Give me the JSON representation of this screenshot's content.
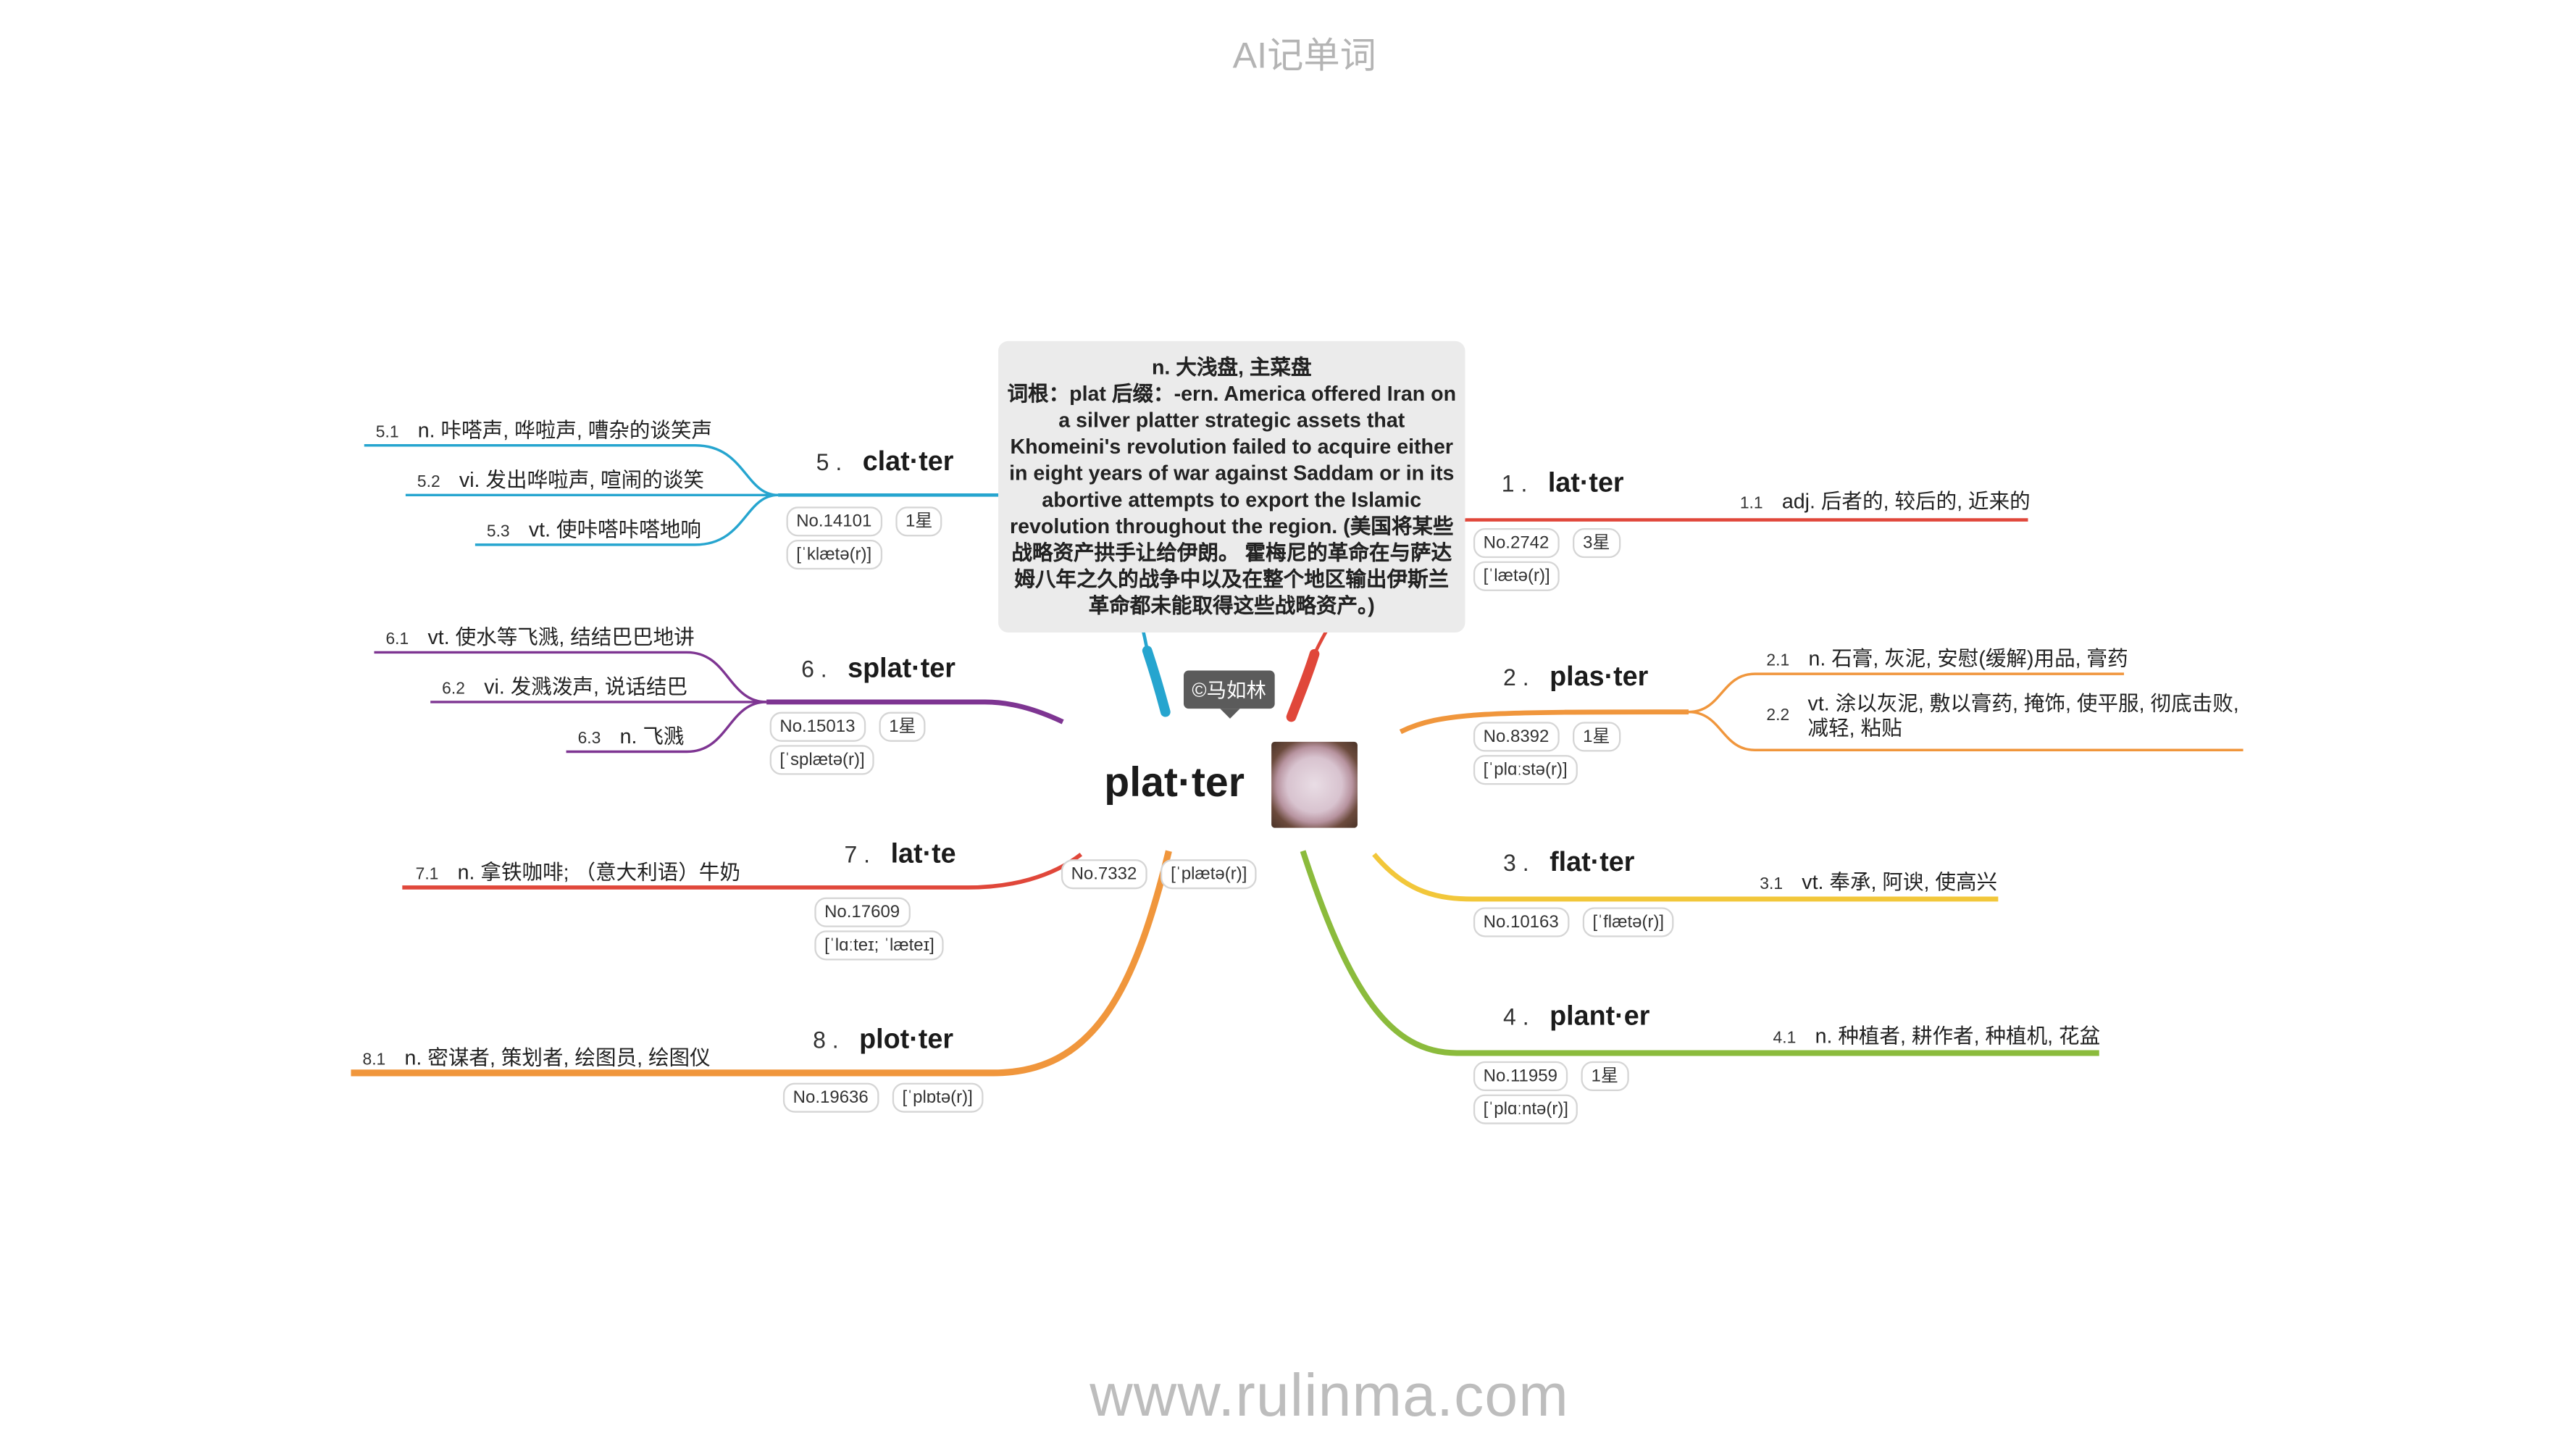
{
  "header": {
    "title": "AI记单词"
  },
  "footer": {
    "url": "www.rulinma.com"
  },
  "center": {
    "word": "plat·ter",
    "tags": [
      "No.7332",
      "[ˈplætə(r)]"
    ],
    "copyright": "©马如林",
    "tooltip_lines": [
      "n. 大浅盘, 主菜盘",
      "词根：plat 后缀：-ern. America offered Iran on a silver platter strategic assets that Khomeini's revolution failed to acquire either in eight years of war against Saddam or in its abortive attempts to export the Islamic revolution throughout the region. (美国将某些战略资产拱手让给伊朗。 霍梅尼的革命在与萨达姆八年之久的战争中以及在整个地区输出伊斯兰革命都未能取得这些战略资产。)"
    ]
  },
  "branches": [
    {
      "num": "1 .",
      "word": "lat·ter",
      "tags": [
        "No.2742",
        "3星",
        "[ˈlætə(r)]"
      ],
      "color": "#e0473a",
      "defs": [
        {
          "num": "1.1",
          "text": "adj. 后者的, 较后的, 近来的"
        }
      ]
    },
    {
      "num": "2 .",
      "word": "plas·ter",
      "tags": [
        "No.8392",
        "1星",
        "[ˈplɑːstə(r)]"
      ],
      "color": "#f0963c",
      "defs": [
        {
          "num": "2.1",
          "text": "n. 石膏, 灰泥, 安慰(缓解)用品, 膏药"
        },
        {
          "num": "2.2",
          "text": "vt. 涂以灰泥, 敷以膏药, 掩饰, 使平服, 彻底击败, 减轻, 粘贴"
        }
      ]
    },
    {
      "num": "3 .",
      "word": "flat·ter",
      "tags": [
        "No.10163",
        "[ˈflætə(r)]"
      ],
      "color": "#f2c73a",
      "defs": [
        {
          "num": "3.1",
          "text": "vt. 奉承, 阿谀, 使高兴"
        }
      ]
    },
    {
      "num": "4 .",
      "word": "plant·er",
      "tags": [
        "No.11959",
        "1星",
        "[ˈplɑːntə(r)]"
      ],
      "color": "#8bbb3c",
      "defs": [
        {
          "num": "4.1",
          "text": "n. 种植者, 耕作者, 种植机, 花盆"
        }
      ]
    },
    {
      "num": "5 .",
      "word": "clat·ter",
      "tags": [
        "No.14101",
        "1星",
        "[ˈklætə(r)]"
      ],
      "color": "#26a5cf",
      "defs": [
        {
          "num": "5.1",
          "text": "n. 咔嗒声, 哗啦声, 嘈杂的谈笑声"
        },
        {
          "num": "5.2",
          "text": "vi. 发出哗啦声, 喧闹的谈笑"
        },
        {
          "num": "5.3",
          "text": "vt. 使咔嗒咔嗒地响"
        }
      ]
    },
    {
      "num": "6 .",
      "word": "splat·ter",
      "tags": [
        "No.15013",
        "1星",
        "[ˈsplætə(r)]"
      ],
      "color": "#7e3592",
      "defs": [
        {
          "num": "6.1",
          "text": "vt. 使水等飞溅, 结结巴巴地讲"
        },
        {
          "num": "6.2",
          "text": "vi. 发溅泼声, 说话结巴"
        },
        {
          "num": "6.3",
          "text": "n. 飞溅"
        }
      ]
    },
    {
      "num": "7 .",
      "word": "lat·te",
      "tags": [
        "No.17609",
        "[ˈlɑːteɪ; ˈlæteɪ]"
      ],
      "color": "#e0473a",
      "defs": [
        {
          "num": "7.1",
          "text": "n. 拿铁咖啡; （意大利语）牛奶"
        }
      ]
    },
    {
      "num": "8 .",
      "word": "plot·ter",
      "tags": [
        "No.19636",
        "[ˈplɒtə(r)]"
      ],
      "color": "#f0963c",
      "defs": [
        {
          "num": "8.1",
          "text": "n. 密谋者, 策划者, 绘图员, 绘图仪"
        }
      ]
    }
  ]
}
